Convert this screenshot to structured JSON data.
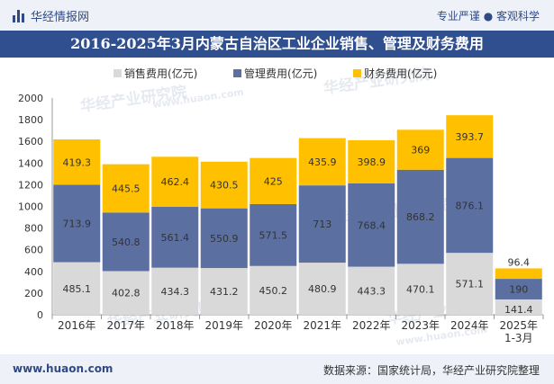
{
  "header": {
    "brand": "华经情报网",
    "tagline": "专业严谨 ● 客观科学"
  },
  "footer": {
    "site": "www.huaon.com",
    "source": "数据来源：国家统计局，华经产业研究院整理"
  },
  "watermark": {
    "text": "华经产业研究院",
    "url": "www.huaon.com"
  },
  "colors": {
    "sales": "#d9d9d9",
    "management": "#5b6fa1",
    "finance": "#ffc000",
    "title_bg": "#2f4f8f",
    "bar_bg": "#eef2f8"
  },
  "chart_data": {
    "type": "bar",
    "stacked": true,
    "title": "2016-2025年3月内蒙古自治区工业企业销售、管理及财务费用",
    "categories": [
      "2016年",
      "2017年",
      "2018年",
      "2019年",
      "2020年",
      "2021年",
      "2022年",
      "2023年",
      "2024年",
      "2025年\n1-3月"
    ],
    "series": [
      {
        "name": "销售费用(亿元)",
        "values": [
          485.1,
          402.8,
          434.3,
          431.2,
          450.2,
          480.9,
          443.3,
          470.1,
          571.1,
          141.4
        ]
      },
      {
        "name": "管理费用(亿元)",
        "values": [
          713.9,
          540.8,
          561.4,
          550.9,
          571.5,
          713,
          768.4,
          868.2,
          876.1,
          190
        ]
      },
      {
        "name": "财务费用(亿元)",
        "values": [
          419.3,
          445.5,
          462.4,
          430.5,
          425,
          435.9,
          398.9,
          369,
          393.7,
          96.4
        ]
      }
    ],
    "ylim": [
      0,
      2000
    ],
    "yticks": [
      0,
      200,
      400,
      600,
      800,
      1000,
      1200,
      1400,
      1600,
      1800,
      2000
    ],
    "xlabel": "",
    "ylabel": "",
    "legend_position": "top"
  }
}
